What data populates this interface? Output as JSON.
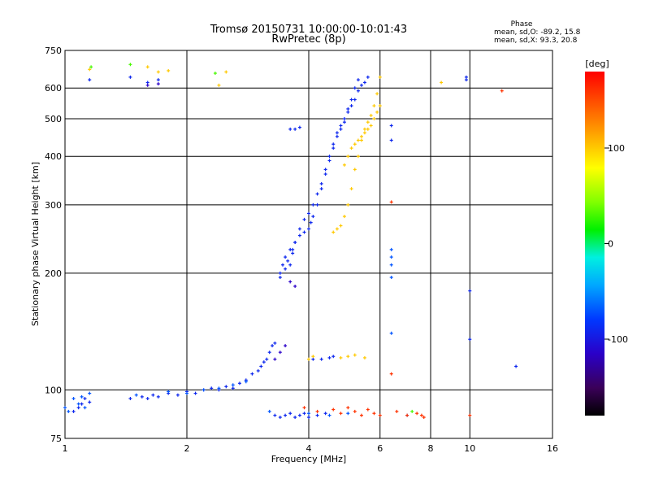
{
  "chart_data": {
    "type": "scatter",
    "title": "Tromsø 20150731 10:00:00-10:01:43",
    "subtitle": "RwPretec (8p)",
    "xlabel": "Frequency [MHz]",
    "ylabel": "Stationary phase Virtual Height [km]",
    "x_scale": "log",
    "y_scale": "log",
    "xlim": [
      1,
      16
    ],
    "ylim": [
      75,
      750
    ],
    "x_ticks": [
      1,
      2,
      4,
      6,
      8,
      10,
      16
    ],
    "y_ticks": [
      75,
      100,
      200,
      300,
      400,
      500,
      600,
      750
    ],
    "grid": true,
    "stats_header": "Phase",
    "stats": [
      "mean, sd,O: -89.2, 15.8",
      "mean, sd,X:  93.3, 20.8"
    ],
    "colorbar": {
      "label": "[deg]",
      "ticks": [
        100,
        0,
        -100
      ],
      "range": [
        -180,
        180
      ]
    },
    "series": [
      {
        "mode": "O",
        "phase_deg": -90,
        "x": [
          1.05,
          1.08,
          1.1,
          1.12,
          1.15,
          1.45,
          1.55,
          1.6,
          1.65,
          1.7,
          1.8,
          1.9,
          2.0,
          2.1,
          2.2,
          2.3,
          2.4,
          2.5,
          2.6,
          2.7,
          2.8,
          2.9,
          3.0,
          3.05,
          3.1,
          3.15,
          3.2,
          3.25,
          3.3,
          3.4,
          3.45,
          3.5,
          3.55,
          3.6,
          3.65,
          3.7,
          3.8,
          3.9,
          4.0,
          4.05,
          4.1,
          4.2,
          4.3,
          4.4,
          4.5,
          4.6,
          4.7,
          4.8,
          4.9,
          5.0,
          5.1,
          5.2,
          5.3,
          5.4,
          5.5,
          5.6,
          1.15,
          1.45,
          1.6,
          1.7,
          3.4,
          3.5,
          3.6,
          3.65,
          3.7,
          3.8,
          3.9,
          4.0,
          4.1,
          4.2,
          4.3,
          4.4,
          4.5,
          4.6,
          4.7,
          4.8,
          4.9,
          5.0,
          5.1,
          5.2,
          5.3,
          3.6,
          3.7,
          3.8,
          4.1,
          4.3,
          4.5,
          4.6,
          3.3,
          3.4,
          3.5,
          3.6,
          3.7,
          3.8,
          3.9,
          4.0,
          4.2,
          4.4,
          6.4,
          6.4,
          9.8,
          9.8,
          10.0,
          10.0,
          13.0
        ],
        "y": [
          88,
          90,
          92,
          95,
          93,
          95,
          96,
          95,
          97,
          96,
          98,
          97,
          99,
          98,
          100,
          101,
          100,
          102,
          101,
          104,
          106,
          110,
          112,
          115,
          118,
          120,
          125,
          130,
          132,
          200,
          210,
          220,
          215,
          230,
          225,
          240,
          250,
          255,
          260,
          270,
          280,
          300,
          330,
          360,
          400,
          430,
          460,
          470,
          490,
          520,
          540,
          560,
          590,
          610,
          620,
          640,
          630,
          640,
          620,
          630,
          195,
          205,
          210,
          230,
          240,
          260,
          275,
          285,
          300,
          320,
          340,
          370,
          390,
          420,
          450,
          480,
          500,
          530,
          560,
          600,
          630,
          470,
          470,
          475,
          120,
          120,
          121,
          122,
          86,
          85,
          86,
          87,
          85,
          86,
          87,
          85,
          86,
          87,
          440,
          480,
          630,
          640,
          180,
          135,
          115
        ]
      },
      {
        "mode": "O (cyan)",
        "phase_deg": -70,
        "x": [
          1.0,
          1.02,
          1.05,
          1.08,
          1.1,
          1.12,
          1.15,
          1.5,
          1.8,
          2.0,
          2.2,
          2.4,
          2.6,
          2.8,
          3.2,
          4.0,
          4.5,
          5.0,
          6.4,
          6.4,
          6.4,
          6.4,
          6.4,
          7.0
        ],
        "y": [
          90,
          88,
          95,
          92,
          96,
          90,
          98,
          97,
          99,
          98,
          100,
          101,
          103,
          105,
          88,
          87,
          86,
          87,
          230,
          220,
          210,
          195,
          140,
          86
        ]
      },
      {
        "mode": "X",
        "phase_deg": 100,
        "x": [
          4.6,
          4.7,
          4.8,
          4.9,
          5.0,
          5.1,
          5.2,
          5.3,
          5.4,
          5.5,
          5.6,
          5.7,
          5.8,
          5.9,
          6.0,
          4.9,
          5.0,
          5.1,
          5.2,
          5.3,
          5.4,
          5.5,
          5.6,
          5.7,
          5.8,
          5.9,
          6.0,
          4.0,
          4.1,
          4.8,
          5.0,
          5.2,
          5.5,
          1.15,
          1.6,
          1.7,
          1.8,
          2.4,
          2.5,
          8.5
        ],
        "y": [
          255,
          260,
          265,
          280,
          300,
          330,
          370,
          400,
          440,
          460,
          470,
          480,
          500,
          520,
          540,
          380,
          400,
          420,
          430,
          440,
          450,
          470,
          490,
          510,
          540,
          580,
          640,
          120,
          122,
          121,
          122,
          123,
          121,
          670,
          680,
          660,
          665,
          610,
          660,
          620
        ]
      },
      {
        "mode": "X (orange/red)",
        "phase_deg": 160,
        "x": [
          3.9,
          4.2,
          4.6,
          4.8,
          5.0,
          5.2,
          5.4,
          5.6,
          5.8,
          6.0,
          6.4,
          6.4,
          6.6,
          7.0,
          7.4,
          7.6,
          7.7,
          10.0,
          12.0
        ],
        "y": [
          90,
          88,
          89,
          87,
          90,
          88,
          86,
          89,
          87,
          86,
          305,
          110,
          88,
          86,
          87,
          86,
          85,
          86,
          590
        ]
      },
      {
        "mode": "green",
        "phase_deg": 30,
        "x": [
          1.16,
          1.45,
          2.35,
          7.2
        ],
        "y": [
          680,
          690,
          655,
          88
        ]
      },
      {
        "mode": "dark-blue",
        "phase_deg": -115,
        "x": [
          1.6,
          1.7,
          3.3,
          3.4,
          3.5,
          3.6,
          3.7
        ],
        "y": [
          610,
          615,
          120,
          125,
          130,
          190,
          185
        ]
      }
    ]
  }
}
